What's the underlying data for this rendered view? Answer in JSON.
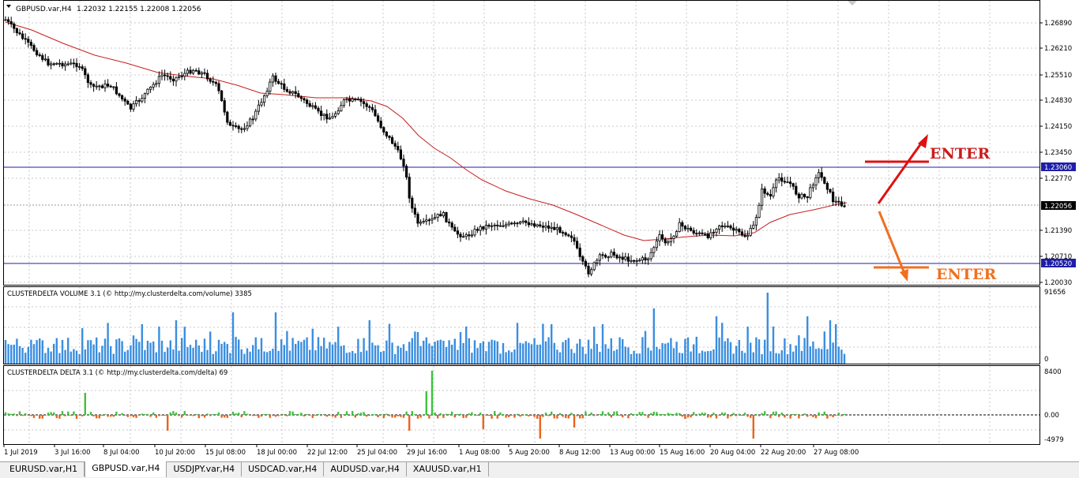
{
  "header": {
    "symbol": "GBPUSD.var,H4",
    "ohlc": "1.22032 1.22155 1.22008 1.22056"
  },
  "price_axis": {
    "ticks": [
      "1.26890",
      "1.26210",
      "1.25510",
      "1.24830",
      "1.24150",
      "1.23450",
      "1.22770",
      "1.21390",
      "1.20710",
      "1.20030"
    ],
    "level_high": "1.23060",
    "current": "1.22056",
    "level_low": "1.20520"
  },
  "volume_panel": {
    "label": "CLUSTERDELTA VOLUME 3.1 (© http://my.clusterdelta.com/volume) 3385",
    "axis_max": "91656",
    "axis_min": "0"
  },
  "delta_panel": {
    "label": "CLUSTERDELTA DELTA 3.1 (© http://my.clusterdelta.com/delta) 69",
    "axis_max": "8400",
    "axis_zero": "0.00",
    "axis_min": "-4979"
  },
  "time_axis": [
    "1 Jul 2019",
    "3 Jul 16:00",
    "8 Jul 04:00",
    "10 Jul 20:00",
    "15 Jul 08:00",
    "18 Jul 00:00",
    "22 Jul 12:00",
    "25 Jul 04:00",
    "29 Jul 16:00",
    "1 Aug 08:00",
    "5 Aug 20:00",
    "8 Aug 12:00",
    "13 Aug 00:00",
    "15 Aug 16:00",
    "20 Aug 04:00",
    "22 Aug 20:00",
    "27 Aug 08:00"
  ],
  "annotations": {
    "enter_top": "ENTER",
    "enter_bottom": "ENTER"
  },
  "tabs": [
    {
      "label": "EURUSD.var,H1"
    },
    {
      "label": "GBPUSD.var,H4"
    },
    {
      "label": "USDJPY.var,H4"
    },
    {
      "label": "USDCAD.var,H4"
    },
    {
      "label": "AUDUSD.var,H4"
    },
    {
      "label": "XAUUSD.var,H1"
    }
  ],
  "colors": {
    "candles": "#000000",
    "ma": "#c81e1e",
    "level_line": "#1e1ea8",
    "volume": "#3a8ee0",
    "delta_pos": "#3cc43c",
    "delta_neg": "#e8641e",
    "arrow_up": "#e01010",
    "arrow_down": "#f07020"
  }
}
